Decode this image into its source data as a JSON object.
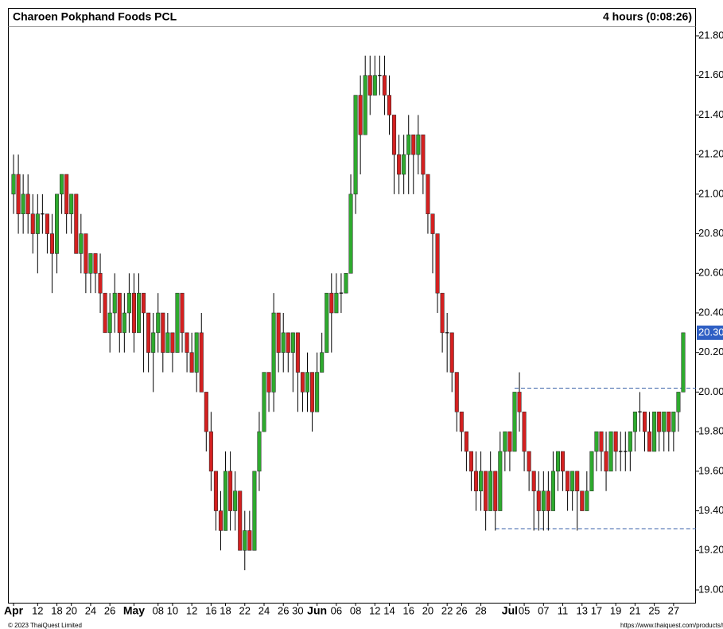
{
  "chart_data": {
    "type": "candlestick",
    "title": "Charoen Pokphand Foods PCL",
    "subtitle": "4 hours (0:08:26)",
    "footer_left": "© 2023 ThaiQuest Limited",
    "footer_right": "https://www.thaiquest.com/products/tqprofessional",
    "up_color": "#2eaa2e",
    "down_color": "#d42020",
    "ylim": [
      19.0,
      21.8
    ],
    "yticks": [
      {
        "value": 19,
        "label": "19.00"
      },
      {
        "value": 19.2,
        "label": "19.20"
      },
      {
        "value": 19.4,
        "label": "19.40"
      },
      {
        "value": 19.6,
        "label": "19.60"
      },
      {
        "value": 19.8,
        "label": "19.80"
      },
      {
        "value": 20,
        "label": "20.00"
      },
      {
        "value": 20.2,
        "label": "20.20"
      },
      {
        "value": 20.4,
        "label": "20.40"
      },
      {
        "value": 20.6,
        "label": "20.60"
      },
      {
        "value": 20.8,
        "label": "20.80"
      },
      {
        "value": 21,
        "label": "21.00"
      },
      {
        "value": 21.2,
        "label": "21.20"
      },
      {
        "value": 21.4,
        "label": "21.40"
      },
      {
        "value": 21.6,
        "label": "21.60"
      },
      {
        "value": 21.8,
        "label": "21.80"
      }
    ],
    "last_price": {
      "value": 20.3,
      "label": "20.30"
    },
    "levels": [
      {
        "value": 20.02,
        "start": 104
      },
      {
        "value": 19.31,
        "start": 100
      }
    ],
    "xticks": [
      {
        "index": 0,
        "label": "Apr",
        "major": true
      },
      {
        "index": 5,
        "label": "12"
      },
      {
        "index": 9,
        "label": "18"
      },
      {
        "index": 12,
        "label": "20"
      },
      {
        "index": 16,
        "label": "24"
      },
      {
        "index": 20,
        "label": "26"
      },
      {
        "index": 25,
        "label": "May",
        "major": true
      },
      {
        "index": 30,
        "label": "08"
      },
      {
        "index": 33,
        "label": "10"
      },
      {
        "index": 37,
        "label": "12"
      },
      {
        "index": 41,
        "label": "16"
      },
      {
        "index": 44,
        "label": "18"
      },
      {
        "index": 48,
        "label": "22"
      },
      {
        "index": 52,
        "label": "24"
      },
      {
        "index": 56,
        "label": "26"
      },
      {
        "index": 59,
        "label": "30"
      },
      {
        "index": 63,
        "label": "Jun",
        "major": true
      },
      {
        "index": 67,
        "label": "06"
      },
      {
        "index": 71,
        "label": "08"
      },
      {
        "index": 75,
        "label": "12"
      },
      {
        "index": 78,
        "label": "14"
      },
      {
        "index": 82,
        "label": "16"
      },
      {
        "index": 86,
        "label": "20"
      },
      {
        "index": 90,
        "label": "22"
      },
      {
        "index": 93,
        "label": "26"
      },
      {
        "index": 97,
        "label": "28"
      },
      {
        "index": 103,
        "label": "Jul",
        "major": true
      },
      {
        "index": 106,
        "label": "05"
      },
      {
        "index": 110,
        "label": "07"
      },
      {
        "index": 114,
        "label": "11"
      },
      {
        "index": 118,
        "label": "13"
      },
      {
        "index": 121,
        "label": "17"
      },
      {
        "index": 125,
        "label": "19"
      },
      {
        "index": 129,
        "label": "21"
      },
      {
        "index": 133,
        "label": "25"
      },
      {
        "index": 137,
        "label": "27"
      }
    ],
    "open": [
      21.0,
      21.1,
      20.9,
      21.0,
      20.9,
      20.8,
      20.9,
      20.9,
      20.8,
      20.7,
      21.0,
      21.1,
      20.9,
      21.0,
      20.7,
      20.8,
      20.6,
      20.7,
      20.6,
      20.5,
      20.3,
      20.4,
      20.5,
      20.3,
      20.4,
      20.5,
      20.3,
      20.5,
      20.4,
      20.2,
      20.3,
      20.4,
      20.2,
      20.3,
      20.2,
      20.5,
      20.3,
      20.2,
      20.1,
      20.3,
      20.0,
      19.8,
      19.6,
      19.4,
      19.3,
      19.6,
      19.4,
      19.5,
      19.2,
      19.3,
      19.2,
      19.6,
      19.8,
      20.1,
      20.0,
      20.4,
      20.2,
      20.3,
      20.2,
      20.3,
      20.1,
      20.0,
      20.1,
      19.9,
      20.1,
      20.2,
      20.5,
      20.4,
      20.5,
      20.5,
      20.6,
      21.0,
      21.5,
      21.3,
      21.6,
      21.5,
      21.6,
      21.6,
      21.5,
      21.4,
      21.2,
      21.1,
      21.2,
      21.3,
      21.2,
      21.3,
      21.1,
      20.9,
      20.8,
      20.5,
      20.3,
      20.3,
      20.1,
      19.9,
      19.8,
      19.7,
      19.6,
      19.5,
      19.6,
      19.4,
      19.6,
      19.4,
      19.7,
      19.8,
      19.7,
      20.0,
      19.9,
      19.7,
      19.6,
      19.5,
      19.4,
      19.5,
      19.4,
      19.6,
      19.7,
      19.6,
      19.5,
      19.6,
      19.5,
      19.4,
      19.5,
      19.7,
      19.8,
      19.7,
      19.6,
      19.8,
      19.7,
      19.7,
      19.7,
      19.8,
      19.9,
      19.9,
      19.8,
      19.7,
      19.9,
      19.8,
      19.9,
      19.8,
      19.9,
      20.0
    ],
    "high": [
      21.2,
      21.2,
      21.1,
      21.1,
      21.0,
      21.0,
      21.0,
      20.9,
      20.9,
      21.0,
      21.1,
      21.1,
      21.0,
      21.0,
      20.9,
      20.8,
      20.7,
      20.7,
      20.7,
      20.5,
      20.5,
      20.6,
      20.5,
      20.5,
      20.6,
      20.6,
      20.6,
      20.5,
      20.4,
      20.4,
      20.5,
      20.4,
      20.4,
      20.3,
      20.5,
      20.5,
      20.3,
      20.3,
      20.3,
      20.4,
      20.0,
      19.9,
      19.6,
      19.5,
      19.7,
      19.7,
      19.6,
      19.5,
      19.4,
      19.4,
      19.6,
      19.9,
      20.1,
      20.1,
      20.5,
      20.4,
      20.4,
      20.3,
      20.3,
      20.3,
      20.1,
      20.2,
      20.1,
      20.2,
      20.3,
      20.5,
      20.6,
      20.6,
      20.6,
      20.6,
      21.1,
      21.5,
      21.6,
      21.7,
      21.7,
      21.7,
      21.7,
      21.7,
      21.6,
      21.4,
      21.3,
      21.3,
      21.4,
      21.3,
      21.4,
      21.3,
      21.1,
      20.9,
      20.8,
      20.5,
      20.4,
      20.3,
      20.1,
      19.9,
      19.8,
      19.7,
      19.7,
      19.7,
      19.6,
      19.7,
      19.6,
      19.8,
      19.8,
      19.8,
      20.0,
      20.1,
      19.9,
      19.7,
      19.6,
      19.6,
      19.6,
      19.6,
      19.7,
      19.7,
      19.7,
      19.6,
      19.6,
      19.6,
      19.5,
      19.6,
      19.7,
      19.8,
      19.8,
      19.8,
      19.8,
      19.8,
      19.8,
      19.8,
      19.8,
      19.9,
      20.0,
      19.9,
      19.9,
      19.9,
      19.9,
      19.9,
      19.9,
      19.9,
      20.0,
      20.3
    ],
    "low": [
      20.9,
      20.8,
      20.8,
      20.8,
      20.7,
      20.6,
      20.8,
      20.7,
      20.5,
      20.6,
      20.9,
      20.8,
      20.8,
      20.7,
      20.6,
      20.5,
      20.5,
      20.5,
      20.4,
      20.3,
      20.2,
      20.3,
      20.2,
      20.2,
      20.3,
      20.2,
      20.3,
      20.1,
      20.1,
      20.0,
      20.2,
      20.1,
      20.2,
      20.1,
      20.2,
      20.2,
      20.1,
      20.1,
      20.0,
      20.0,
      19.7,
      19.5,
      19.3,
      19.2,
      19.3,
      19.3,
      19.3,
      19.2,
      19.1,
      19.2,
      19.2,
      19.5,
      19.8,
      19.9,
      19.9,
      20.1,
      20.1,
      20.1,
      20.0,
      19.9,
      19.9,
      19.9,
      19.8,
      19.9,
      20.1,
      20.2,
      20.2,
      20.4,
      20.4,
      20.5,
      20.6,
      20.9,
      21.1,
      21.3,
      21.4,
      21.5,
      21.5,
      21.4,
      21.3,
      21.0,
      21.0,
      21.0,
      21.0,
      21.0,
      21.1,
      21.0,
      20.8,
      20.6,
      20.4,
      20.2,
      20.1,
      20.0,
      19.8,
      19.7,
      19.6,
      19.5,
      19.4,
      19.4,
      19.3,
      19.4,
      19.3,
      19.4,
      19.6,
      19.6,
      19.7,
      19.8,
      19.6,
      19.5,
      19.3,
      19.3,
      19.3,
      19.3,
      19.4,
      19.5,
      19.5,
      19.4,
      19.4,
      19.3,
      19.4,
      19.4,
      19.5,
      19.6,
      19.6,
      19.5,
      19.6,
      19.6,
      19.6,
      19.6,
      19.6,
      19.7,
      19.8,
      19.7,
      19.7,
      19.7,
      19.7,
      19.7,
      19.7,
      19.7,
      19.8,
      20.0
    ],
    "close": [
      21.1,
      20.9,
      21.0,
      20.9,
      20.8,
      20.9,
      20.9,
      20.8,
      20.7,
      21.0,
      21.1,
      20.9,
      21.0,
      20.7,
      20.8,
      20.6,
      20.7,
      20.6,
      20.5,
      20.3,
      20.4,
      20.5,
      20.3,
      20.4,
      20.5,
      20.3,
      20.5,
      20.4,
      20.2,
      20.3,
      20.4,
      20.2,
      20.3,
      20.2,
      20.5,
      20.3,
      20.2,
      20.1,
      20.3,
      20.0,
      19.8,
      19.6,
      19.4,
      19.3,
      19.6,
      19.4,
      19.5,
      19.2,
      19.3,
      19.2,
      19.6,
      19.8,
      20.1,
      20.0,
      20.4,
      20.2,
      20.3,
      20.2,
      20.3,
      20.1,
      20.0,
      20.1,
      19.9,
      20.1,
      20.2,
      20.5,
      20.4,
      20.5,
      20.5,
      20.6,
      21.0,
      21.5,
      21.3,
      21.6,
      21.5,
      21.6,
      21.6,
      21.5,
      21.4,
      21.2,
      21.1,
      21.2,
      21.3,
      21.2,
      21.3,
      21.1,
      20.9,
      20.8,
      20.5,
      20.3,
      20.3,
      20.1,
      19.9,
      19.8,
      19.7,
      19.6,
      19.5,
      19.6,
      19.4,
      19.6,
      19.4,
      19.7,
      19.8,
      19.7,
      20.0,
      19.9,
      19.7,
      19.6,
      19.5,
      19.4,
      19.5,
      19.4,
      19.6,
      19.7,
      19.6,
      19.5,
      19.6,
      19.5,
      19.4,
      19.5,
      19.7,
      19.8,
      19.7,
      19.6,
      19.8,
      19.7,
      19.7,
      19.7,
      19.8,
      19.9,
      19.9,
      19.8,
      19.7,
      19.9,
      19.8,
      19.9,
      19.8,
      19.9,
      20.0,
      20.3
    ]
  }
}
